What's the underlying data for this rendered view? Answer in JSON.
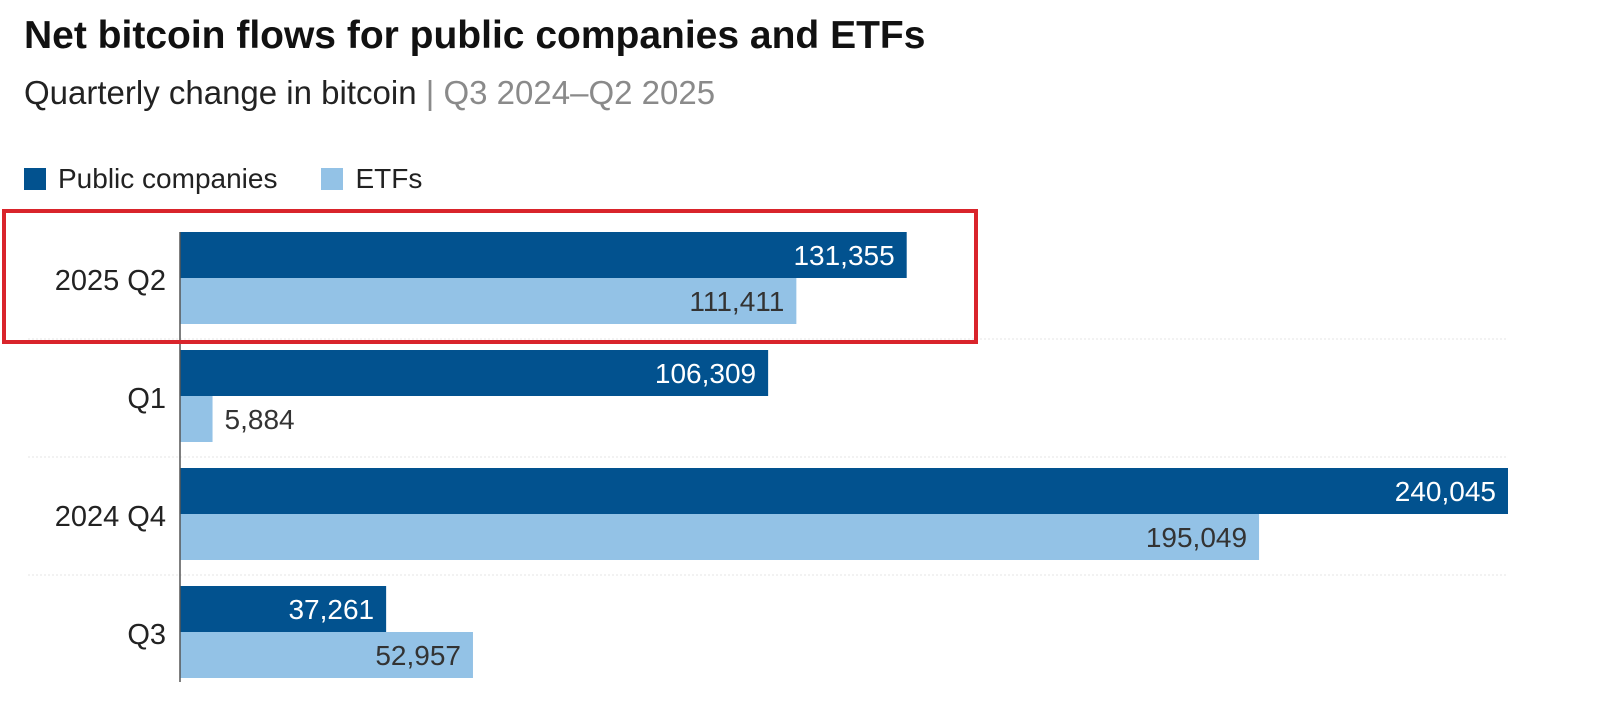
{
  "colors": {
    "public_companies": "#02528f",
    "etfs": "#93c2e6",
    "highlight": "#d9242b"
  },
  "chart_data": {
    "type": "bar",
    "orientation": "horizontal",
    "title": "Net bitcoin flows for public companies and ETFs",
    "subtitle": "Quarterly change in bitcoin",
    "subtitle_separator": "|",
    "subtitle_range": "Q3 2024–Q2 2025",
    "categories": [
      "2025 Q2",
      "Q1",
      "2024 Q4",
      "Q3"
    ],
    "series": [
      {
        "name": "Public companies",
        "values": [
          131355,
          106309,
          240045,
          37261
        ],
        "labels": [
          "131,355",
          "106,309",
          "240,045",
          "37,261"
        ]
      },
      {
        "name": "ETFs",
        "values": [
          111411,
          5884,
          195049,
          52957
        ],
        "labels": [
          "111,411",
          "5,884",
          "195,049",
          "52,957"
        ]
      }
    ],
    "xlim": [
      0,
      240045
    ],
    "legend_position": "top-left",
    "highlighted_category": "2025 Q2"
  }
}
